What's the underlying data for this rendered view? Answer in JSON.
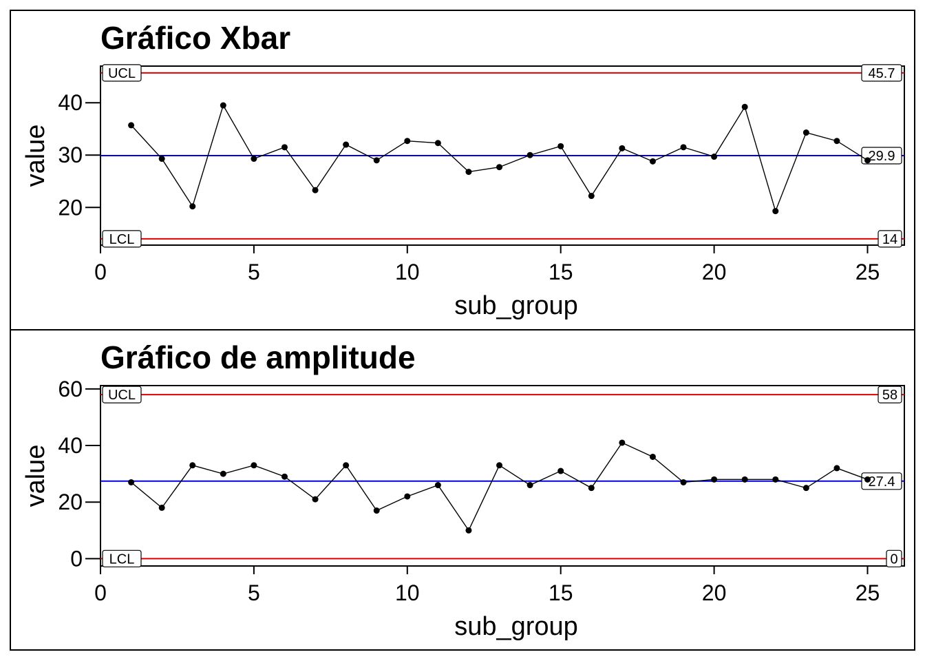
{
  "chart_data": [
    {
      "type": "line",
      "title": "Gráfico Xbar",
      "xlabel": "sub_group",
      "ylabel": "value",
      "xlim": [
        0,
        26.2
      ],
      "ylim": [
        12.8,
        47.0
      ],
      "xticks": [
        0,
        5,
        10,
        15,
        20,
        25
      ],
      "yticks": [
        20,
        30,
        40
      ],
      "grid": false,
      "series": [
        {
          "x": [
            1,
            2,
            3,
            4,
            5,
            6,
            7,
            8,
            9,
            10,
            11,
            12,
            13,
            14,
            15,
            16,
            17,
            18,
            19,
            20,
            21,
            22,
            23,
            24,
            25
          ],
          "values": [
            35.7,
            29.3,
            20.2,
            39.5,
            29.3,
            31.5,
            23.3,
            32.0,
            29.0,
            32.7,
            32.3,
            26.8,
            27.7,
            30.0,
            31.7,
            22.2,
            31.3,
            28.8,
            31.5,
            29.7,
            39.2,
            19.3,
            34.3,
            32.7,
            29.0
          ]
        }
      ],
      "limits": {
        "ucl": {
          "label": "UCL",
          "value": 45.7,
          "value_label": "45.7",
          "color": "#e00000"
        },
        "center": {
          "value": 29.9,
          "value_label": "29.9",
          "color": "#0000e0"
        },
        "lcl": {
          "label": "LCL",
          "value": 14,
          "value_label": "14",
          "color": "#e00000"
        }
      }
    },
    {
      "type": "line",
      "title": "Gráfico de amplitude",
      "xlabel": "sub_group",
      "ylabel": "value",
      "xlim": [
        0,
        26.2
      ],
      "ylim": [
        -2.6,
        61.2
      ],
      "xticks": [
        0,
        5,
        10,
        15,
        20,
        25
      ],
      "yticks": [
        0,
        20,
        40,
        60
      ],
      "grid": false,
      "series": [
        {
          "x": [
            1,
            2,
            3,
            4,
            5,
            6,
            7,
            8,
            9,
            10,
            11,
            12,
            13,
            14,
            15,
            16,
            17,
            18,
            19,
            20,
            21,
            22,
            23,
            24,
            25
          ],
          "values": [
            27,
            18,
            33,
            30,
            33,
            29,
            21,
            33,
            17,
            22,
            26,
            10,
            33,
            26,
            31,
            25,
            41,
            36,
            27,
            28,
            28,
            28,
            25,
            32,
            28
          ]
        }
      ],
      "limits": {
        "ucl": {
          "label": "UCL",
          "value": 58,
          "value_label": "58",
          "color": "#e00000"
        },
        "center": {
          "value": 27.4,
          "value_label": "27.4",
          "color": "#0000e0"
        },
        "lcl": {
          "label": "LCL",
          "value": 0,
          "value_label": "0",
          "color": "#e00000"
        }
      }
    }
  ]
}
